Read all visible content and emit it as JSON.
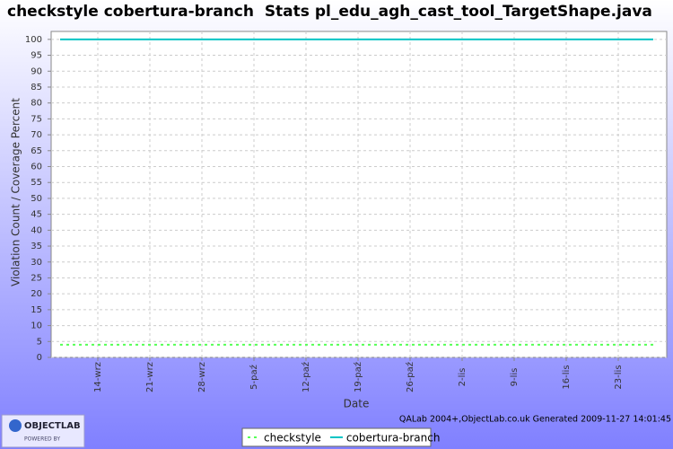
{
  "chart_data": {
    "type": "line",
    "title": "checkstyle cobertura-branch  Stats pl_edu_agh_cast_tool_TargetShape.java",
    "x_label": "Date",
    "y_label": "Violation Count / Coverage Percent",
    "categories": [
      null,
      "14-wrz",
      "21-wrz",
      "28-wrz",
      "5-paź",
      "12-paź",
      "19-paź",
      "26-paź",
      "2-lis",
      "9-lis",
      "16-lis",
      "23-lis",
      null
    ],
    "series": [
      {
        "name": "checkstyle",
        "color": "#55ff55",
        "dashed": true,
        "values": [
          4,
          4,
          4,
          4,
          4,
          4,
          4,
          4,
          4,
          4,
          4,
          4,
          4
        ]
      },
      {
        "name": "cobertura-branch",
        "color": "#00c4c4",
        "dashed": false,
        "values": [
          100,
          100,
          100,
          100,
          100,
          100,
          100,
          100,
          100,
          100,
          100,
          100,
          100
        ]
      }
    ],
    "ylim": [
      0,
      102.5
    ],
    "yticks": [
      0,
      5,
      10,
      15,
      20,
      25,
      30,
      35,
      40,
      45,
      50,
      55,
      60,
      65,
      70,
      75,
      80,
      85,
      90,
      95,
      100
    ],
    "grid": true,
    "legend": "bottom",
    "footer": "QALab 2004+,ObjectLab.co.uk Generated 2009-11-27 14:01:45",
    "logo": {
      "name": "OBJECTLAB",
      "tagline": "POWERED BY"
    }
  }
}
